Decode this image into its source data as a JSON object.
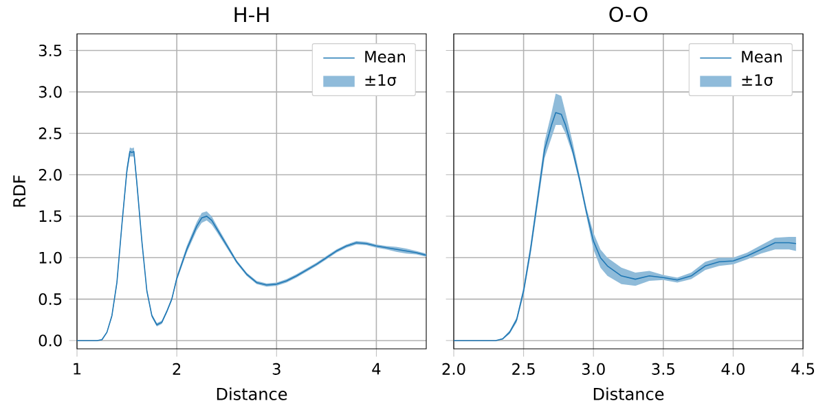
{
  "chart_data": [
    {
      "type": "line",
      "title": "H-H",
      "xlabel": "Distance",
      "ylabel": "RDF",
      "grid": true,
      "legend": "top right",
      "marker": "none",
      "annotations": [
        "±1σ"
      ],
      "x": [
        1.0,
        1.2,
        1.25,
        1.3,
        1.35,
        1.4,
        1.45,
        1.5,
        1.53,
        1.55,
        1.57,
        1.6,
        1.65,
        1.7,
        1.75,
        1.8,
        1.85,
        1.9,
        1.95,
        2.0,
        2.1,
        2.2,
        2.25,
        2.3,
        2.35,
        2.4,
        2.5,
        2.6,
        2.7,
        2.8,
        2.9,
        3.0,
        3.1,
        3.2,
        3.3,
        3.4,
        3.5,
        3.6,
        3.7,
        3.8,
        3.9,
        4.0,
        4.1,
        4.2,
        4.3,
        4.4,
        4.5
      ],
      "xlim": [
        1,
        4.5
      ],
      "xticks": [
        1,
        2,
        3,
        4
      ],
      "ylim": [
        -0.1,
        3.7
      ],
      "yticks": [
        {
          "value": 0,
          "label": "0.0"
        },
        {
          "value": 0.5,
          "label": "0.5"
        },
        {
          "value": 1,
          "label": "1.0"
        },
        {
          "value": 1.5,
          "label": "1.5"
        },
        {
          "value": 2,
          "label": "2.0"
        },
        {
          "value": 2.5,
          "label": "2.5"
        },
        {
          "value": 3,
          "label": "3.0"
        },
        {
          "value": 3.5,
          "label": "3.5"
        }
      ],
      "series": [
        {
          "name": "Mean",
          "color": "#1f77b4",
          "values": [
            0,
            0,
            0.01,
            0.1,
            0.3,
            0.7,
            1.4,
            2.05,
            2.28,
            2.27,
            2.28,
            1.9,
            1.2,
            0.6,
            0.3,
            0.19,
            0.22,
            0.35,
            0.5,
            0.75,
            1.1,
            1.38,
            1.48,
            1.5,
            1.45,
            1.35,
            1.15,
            0.95,
            0.8,
            0.7,
            0.67,
            0.68,
            0.72,
            0.78,
            0.85,
            0.92,
            1.0,
            1.08,
            1.14,
            1.18,
            1.17,
            1.14,
            1.12,
            1.1,
            1.08,
            1.06,
            1.03
          ],
          "lower": [
            0,
            0,
            0,
            0.09,
            0.28,
            0.67,
            1.36,
            2.0,
            2.22,
            2.22,
            2.22,
            1.85,
            1.17,
            0.58,
            0.28,
            0.17,
            0.2,
            0.33,
            0.48,
            0.72,
            1.06,
            1.33,
            1.42,
            1.45,
            1.4,
            1.31,
            1.12,
            0.93,
            0.78,
            0.68,
            0.65,
            0.66,
            0.7,
            0.76,
            0.83,
            0.9,
            0.98,
            1.06,
            1.12,
            1.16,
            1.15,
            1.12,
            1.1,
            1.07,
            1.05,
            1.04,
            1.01
          ],
          "upper": [
            0,
            0,
            0.02,
            0.11,
            0.32,
            0.73,
            1.44,
            2.1,
            2.33,
            2.32,
            2.33,
            1.95,
            1.23,
            0.62,
            0.32,
            0.21,
            0.24,
            0.37,
            0.52,
            0.78,
            1.14,
            1.43,
            1.54,
            1.56,
            1.5,
            1.39,
            1.18,
            0.97,
            0.82,
            0.72,
            0.69,
            0.7,
            0.74,
            0.8,
            0.87,
            0.94,
            1.02,
            1.1,
            1.16,
            1.2,
            1.19,
            1.16,
            1.14,
            1.13,
            1.11,
            1.08,
            1.05
          ]
        }
      ]
    },
    {
      "type": "line",
      "title": "O-O",
      "xlabel": "Distance",
      "grid": true,
      "legend": "top right",
      "marker": "none",
      "tick_labels": "x",
      "annotations": [
        "±1σ"
      ],
      "x": [
        2.0,
        2.3,
        2.35,
        2.4,
        2.45,
        2.5,
        2.55,
        2.6,
        2.65,
        2.7,
        2.73,
        2.77,
        2.8,
        2.85,
        2.9,
        2.95,
        3.0,
        3.05,
        3.1,
        3.2,
        3.3,
        3.4,
        3.5,
        3.6,
        3.7,
        3.8,
        3.9,
        4.0,
        4.1,
        4.2,
        4.3,
        4.4,
        4.45
      ],
      "xlim": [
        2,
        4.5
      ],
      "xticks": [
        {
          "value": 2,
          "label": "2.0"
        },
        2.5,
        {
          "value": 3,
          "label": "3.0"
        },
        3.5,
        {
          "value": 4,
          "label": "4.0"
        },
        4.5
      ],
      "ylim": [
        -0.1,
        3.7
      ],
      "yticks": [
        0,
        0.5,
        1,
        1.5,
        2,
        2.5,
        3,
        3.5
      ],
      "series": [
        {
          "name": "Mean",
          "color": "#1f77b4",
          "values": [
            0,
            0,
            0.02,
            0.1,
            0.25,
            0.6,
            1.1,
            1.7,
            2.3,
            2.6,
            2.75,
            2.73,
            2.6,
            2.3,
            1.95,
            1.55,
            1.2,
            1.0,
            0.9,
            0.78,
            0.74,
            0.78,
            0.76,
            0.73,
            0.78,
            0.9,
            0.95,
            0.96,
            1.02,
            1.1,
            1.18,
            1.18,
            1.17
          ],
          "lower": [
            0,
            0,
            0.01,
            0.08,
            0.22,
            0.55,
            1.03,
            1.62,
            2.2,
            2.45,
            2.6,
            2.6,
            2.5,
            2.25,
            1.9,
            1.5,
            1.1,
            0.88,
            0.78,
            0.68,
            0.66,
            0.72,
            0.73,
            0.7,
            0.74,
            0.85,
            0.9,
            0.92,
            0.98,
            1.05,
            1.1,
            1.1,
            1.08
          ],
          "upper": [
            0,
            0,
            0.03,
            0.12,
            0.28,
            0.65,
            1.17,
            1.78,
            2.4,
            2.75,
            2.98,
            2.95,
            2.75,
            2.4,
            2.0,
            1.6,
            1.3,
            1.1,
            1.0,
            0.88,
            0.82,
            0.84,
            0.79,
            0.76,
            0.82,
            0.95,
            1.0,
            1.0,
            1.06,
            1.15,
            1.24,
            1.25,
            1.25
          ]
        }
      ]
    }
  ]
}
